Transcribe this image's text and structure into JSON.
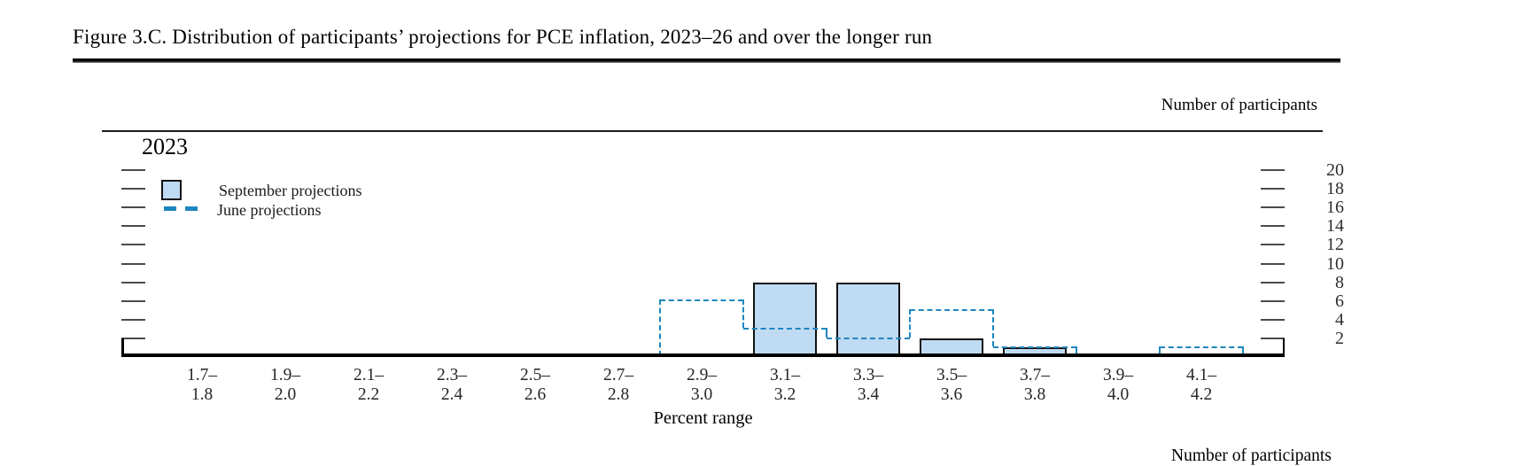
{
  "figure_title": "Figure 3.C. Distribution of participants’ projections for PCE inflation, 2023–26 and over the longer run",
  "panel": {
    "year": "2023",
    "right_axis_title": "Number of participants",
    "x_axis_title": "Percent range",
    "legend": {
      "september_label": "September projections",
      "june_label": "June projections"
    },
    "next_panel_partial_text": "Number of participants"
  },
  "chart_data": {
    "type": "bar",
    "subtype": "histogram-of-participant-projections",
    "title": "2023",
    "categories": [
      "1.7–1.8",
      "1.9–2.0",
      "2.1–2.2",
      "2.3–2.4",
      "2.5–2.6",
      "2.7–2.8",
      "2.9–3.0",
      "3.1–3.2",
      "3.3–3.4",
      "3.5–3.6",
      "3.7–3.8",
      "3.9–4.0",
      "4.1–4.2"
    ],
    "series": [
      {
        "name": "September projections",
        "style": "filled-bar",
        "values": [
          0,
          0,
          0,
          0,
          0,
          0,
          0,
          8,
          8,
          2,
          1,
          0,
          0
        ]
      },
      {
        "name": "June projections",
        "style": "dashed-step-outline",
        "values": [
          0,
          0,
          0,
          0,
          0,
          0,
          6,
          3,
          2,
          5,
          1,
          0,
          1
        ]
      }
    ],
    "xlabel": "Percent range",
    "ylabel": "Number of participants",
    "y_ticks": [
      2,
      4,
      6,
      8,
      10,
      12,
      14,
      16,
      18,
      20
    ],
    "ylim": [
      0,
      21
    ],
    "grid": false,
    "legend_position": "top-left"
  },
  "colors": {
    "bar_fill": "#BFDBF3",
    "bar_border": "#101010",
    "june_line": "#1E86BF",
    "axis": "#000000",
    "tick": "#4a4a4a"
  }
}
